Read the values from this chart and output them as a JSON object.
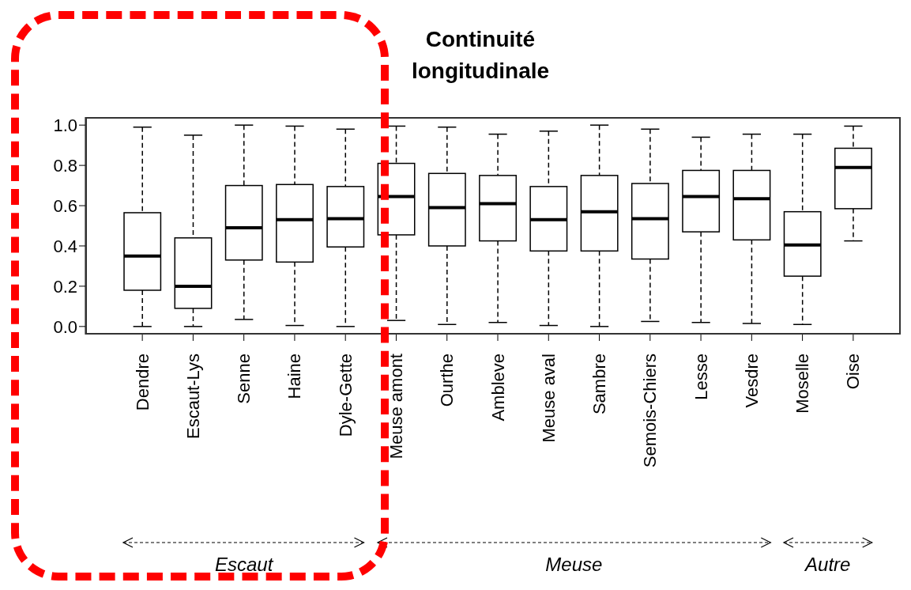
{
  "chart_data": {
    "type": "box",
    "title": "Continuité longitudinale",
    "color": "#000000",
    "categories": [
      "Dendre",
      "Escaut-Lys",
      "Senne",
      "Haine",
      "Dyle-Gette",
      "Meuse amont",
      "Ourthe",
      "Ambleve",
      "Meuse aval",
      "Sambre",
      "Semois-Chiers",
      "Lesse",
      "Vesdre",
      "Moselle",
      "Oise"
    ],
    "boxes": [
      {
        "low": 0.0,
        "q1": 0.18,
        "median": 0.35,
        "q3": 0.565,
        "high": 0.99
      },
      {
        "low": 0.0,
        "q1": 0.09,
        "median": 0.2,
        "q3": 0.44,
        "high": 0.95
      },
      {
        "low": 0.035,
        "q1": 0.33,
        "median": 0.49,
        "q3": 0.7,
        "high": 1.0
      },
      {
        "low": 0.005,
        "q1": 0.32,
        "median": 0.53,
        "q3": 0.705,
        "high": 0.995
      },
      {
        "low": 0.0,
        "q1": 0.395,
        "median": 0.535,
        "q3": 0.695,
        "high": 0.98
      },
      {
        "low": 0.03,
        "q1": 0.455,
        "median": 0.645,
        "q3": 0.81,
        "high": 0.995
      },
      {
        "low": 0.01,
        "q1": 0.4,
        "median": 0.59,
        "q3": 0.76,
        "high": 0.99
      },
      {
        "low": 0.02,
        "q1": 0.425,
        "median": 0.61,
        "q3": 0.75,
        "high": 0.955
      },
      {
        "low": 0.005,
        "q1": 0.375,
        "median": 0.53,
        "q3": 0.695,
        "high": 0.97
      },
      {
        "low": 0.0,
        "q1": 0.375,
        "median": 0.57,
        "q3": 0.75,
        "high": 1.0
      },
      {
        "low": 0.025,
        "q1": 0.335,
        "median": 0.535,
        "q3": 0.71,
        "high": 0.98
      },
      {
        "low": 0.02,
        "q1": 0.47,
        "median": 0.645,
        "q3": 0.775,
        "high": 0.94
      },
      {
        "low": 0.015,
        "q1": 0.43,
        "median": 0.635,
        "q3": 0.775,
        "high": 0.955
      },
      {
        "low": 0.01,
        "q1": 0.25,
        "median": 0.405,
        "q3": 0.57,
        "high": 0.955
      },
      {
        "low": 0.425,
        "q1": 0.585,
        "median": 0.79,
        "q3": 0.885,
        "high": 0.995
      }
    ],
    "ylim": [
      -0.04,
      1.04
    ],
    "yticks": [
      {
        "value": 0,
        "label": "0.0"
      },
      {
        "value": 0.2,
        "label": "0.2"
      },
      {
        "value": 0.4,
        "label": "0.4"
      },
      {
        "value": 0.6,
        "label": "0.6"
      },
      {
        "value": 0.8,
        "label": "0.8"
      },
      {
        "value": 1,
        "label": "1.0"
      }
    ],
    "annotations": [
      "Escaut",
      "Meuse",
      "Autre"
    ]
  }
}
